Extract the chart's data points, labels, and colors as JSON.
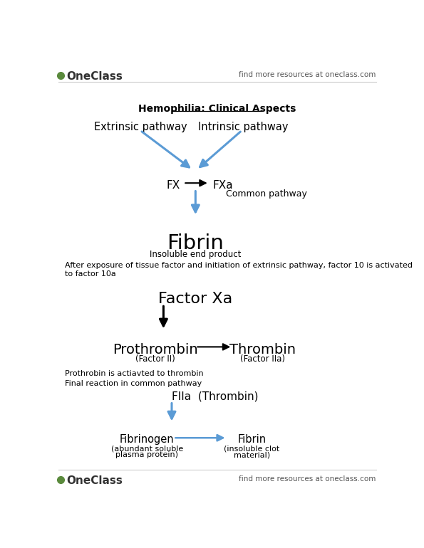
{
  "bg_color": "#ffffff",
  "text_color": "#000000",
  "blue_arrow": "#5b9bd5",
  "black_arrow": "#000000",
  "header_left": "OneClass",
  "header_right": "find more resources at oneclass.com",
  "footer_left": "OneClass",
  "footer_right": "find more resources at oneclass.com",
  "title": "Hemophilia: Clinical Aspects",
  "section1": {
    "extrinsic": "Extrinsic pathway",
    "intrinsic": "Intrinsic pathway",
    "fx": "FX",
    "fxa": "FXa",
    "common": "Common pathway",
    "fibrin": "Fibrin",
    "fibrin_sub": "Insoluble end product"
  },
  "explanation1": "After exposure of tissue factor and initiation of extrinsic pathway, factor 10 is activated\nto factor 10a",
  "section2": {
    "factor_xa": "Factor Xa",
    "prothrombin": "Prothrombin",
    "prothrombin_sub": "(Factor II)",
    "thrombin": "Thrombin",
    "thrombin_sub": "(Factor IIa)"
  },
  "explanation2": "Prothrobin is actiavted to thrombin",
  "explanation3": "Final reaction in common pathway",
  "section3": {
    "fIIa": "FIIa  (Thrombin)",
    "fibrinogen": "Fibrinogen",
    "fibrinogen_sub1": "(abundant soluble",
    "fibrinogen_sub2": "plasma protein)",
    "fibrin": "Fibrin",
    "fibrin_sub1": "(insoluble clot",
    "fibrin_sub2": "material)"
  }
}
